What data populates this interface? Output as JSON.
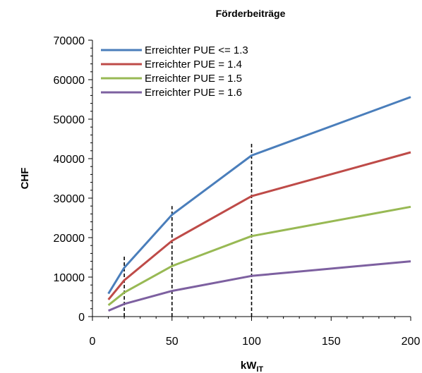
{
  "chart_data": {
    "type": "line",
    "title": "Förderbeiträge",
    "xlabel": "kW",
    "xlabel_subscript": "IT",
    "ylabel": "CHF",
    "xlim": [
      0,
      200
    ],
    "ylim": [
      0,
      70000
    ],
    "x_ticks": [
      "0",
      "50",
      "100",
      "150",
      "200"
    ],
    "y_ticks": [
      "0",
      "10000",
      "20000",
      "30000",
      "40000",
      "50000",
      "60000",
      "70000"
    ],
    "x": [
      10,
      20,
      50,
      100,
      200
    ],
    "series": [
      {
        "name": "Erreichter PUE <= 1.3",
        "color": "#4a7ebb",
        "values": [
          5800,
          12400,
          25800,
          40800,
          55600
        ]
      },
      {
        "name": "Erreichter PUE = 1.4",
        "color": "#be4b48",
        "values": [
          4300,
          9200,
          19200,
          30500,
          41600
        ]
      },
      {
        "name": "Erreichter PUE = 1.5",
        "color": "#98b954",
        "values": [
          2900,
          6100,
          12800,
          20400,
          27800
        ]
      },
      {
        "name": "Erreichter PUE = 1.6",
        "color": "#7d60a0",
        "values": [
          1500,
          3200,
          6500,
          10300,
          14000
        ]
      }
    ],
    "reference_lines": [
      {
        "x": 20,
        "y_top": 15500
      },
      {
        "x": 50,
        "y_top": 28000
      },
      {
        "x": 100,
        "y_top": 44000
      }
    ],
    "legend_position": "top-left",
    "grid": false
  }
}
